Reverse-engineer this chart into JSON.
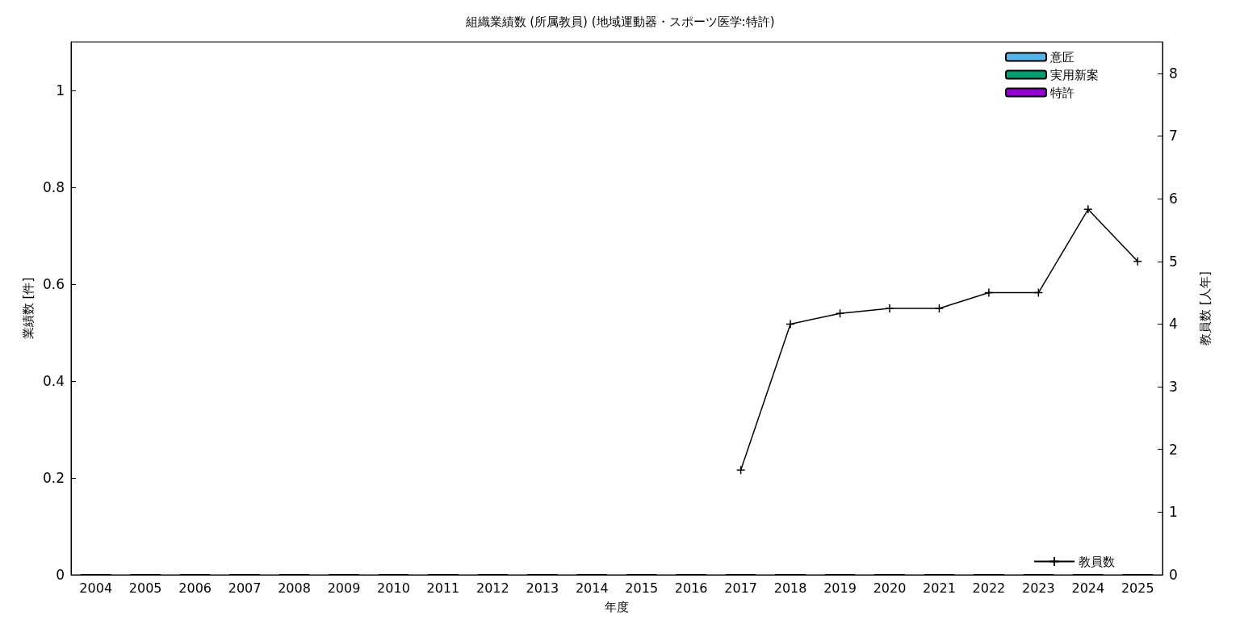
{
  "chart_data": {
    "type": "bar",
    "title": "組織業績数 (所属教員) (地域運動器・スポーツ医学:特許)",
    "xlabel": "年度",
    "ylabel": "業績数 [件]",
    "y2label": "教員数 [人年]",
    "categories": [
      "2004",
      "2005",
      "2006",
      "2007",
      "2008",
      "2009",
      "2010",
      "2011",
      "2012",
      "2013",
      "2014",
      "2015",
      "2016",
      "2017",
      "2018",
      "2019",
      "2020",
      "2021",
      "2022",
      "2023",
      "2024",
      "2025"
    ],
    "stacked": true,
    "series": [
      {
        "name": "意匠",
        "color": "#56b4e9",
        "values": [
          0,
          0,
          0,
          0,
          0,
          0,
          0,
          0,
          0,
          0,
          0,
          0,
          0,
          0,
          0,
          0,
          0,
          0,
          0,
          0,
          0,
          0
        ]
      },
      {
        "name": "実用新案",
        "color": "#009e73",
        "values": [
          0,
          0,
          0,
          0,
          0,
          0,
          0,
          0,
          0,
          0,
          0,
          0,
          0,
          0,
          0,
          0,
          0,
          0,
          0,
          0,
          0,
          0
        ]
      },
      {
        "name": "特許",
        "color": "#9400d3",
        "values": [
          0,
          0,
          0,
          0,
          0,
          0,
          0,
          0,
          0,
          0,
          0,
          0,
          0,
          0,
          0,
          0,
          0,
          0,
          0,
          0,
          0,
          0
        ]
      },
      {
        "name": "教員数",
        "type": "line",
        "axis": "y2",
        "color": "#000000",
        "marker": "cross",
        "values": [
          null,
          null,
          null,
          null,
          null,
          null,
          null,
          null,
          null,
          null,
          null,
          null,
          null,
          1.67,
          4.0,
          4.17,
          4.25,
          4.25,
          4.5,
          4.5,
          5.83,
          5.0
        ]
      }
    ],
    "ylim": [
      0,
      1.1
    ],
    "yticks": [
      0,
      0.2,
      0.4,
      0.6,
      0.8,
      1
    ],
    "y2lim": [
      0,
      8.5
    ],
    "y2ticks": [
      0,
      1,
      2,
      3,
      4,
      5,
      6,
      7,
      8
    ],
    "legend": "right",
    "grid": false
  }
}
